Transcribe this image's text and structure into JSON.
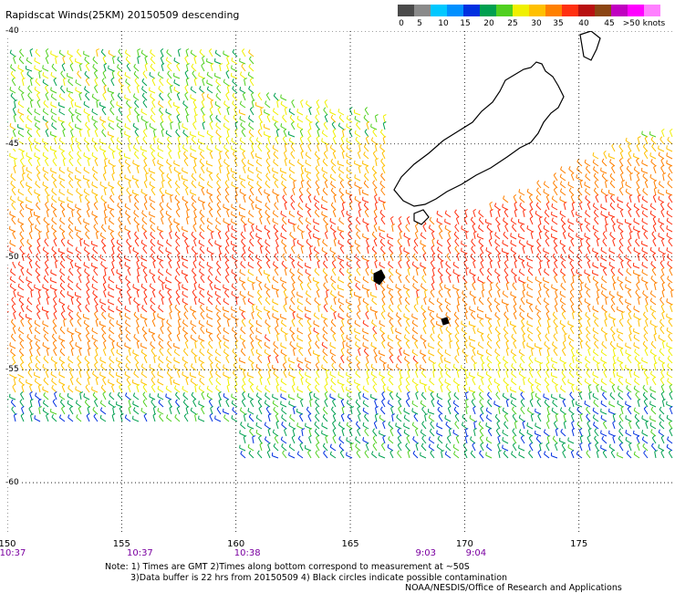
{
  "title": "Rapidscat Winds(25KM) 20150509 descending",
  "color_scale": {
    "colors": [
      "#4a4a4a",
      "#8a8a8a",
      "#00c8ff",
      "#0090ff",
      "#0030e0",
      "#00a050",
      "#50d020",
      "#f0f000",
      "#ffc000",
      "#ff8000",
      "#ff3010",
      "#b81010",
      "#8b4513",
      "#c000c0",
      "#ff00ff",
      "#ff80ff"
    ],
    "labels": [
      "0",
      "5",
      "10",
      "15",
      "20",
      "25",
      "30",
      "35",
      "40",
      "45",
      ">50 knots"
    ]
  },
  "map": {
    "lat_labels": [
      "-40",
      "-45",
      "-50",
      "-55",
      "-60"
    ],
    "lon_labels": [
      "150",
      "155",
      "160",
      "165",
      "170",
      "175"
    ],
    "lon_range": [
      150,
      179.2
    ],
    "lat_range": [
      -40,
      -62.3
    ],
    "time_labels": [
      {
        "text": "10:37",
        "lon": 150
      },
      {
        "text": "10:37",
        "lon": 155.8
      },
      {
        "text": "10:38",
        "lon": 160.5
      },
      {
        "text": "9:03",
        "lon": 168.3
      },
      {
        "text": "9:04",
        "lon": 170.5
      }
    ]
  },
  "notes": {
    "line1": "Note: 1) Times are GMT 2)Times along bottom correspond to measurement at ~50S",
    "line2": "3)Data buffer is 22 hrs from 20150509 4) Black circles indicate possible contamination"
  },
  "credit": "NOAA/NESDIS/Office of Research and Applications"
}
